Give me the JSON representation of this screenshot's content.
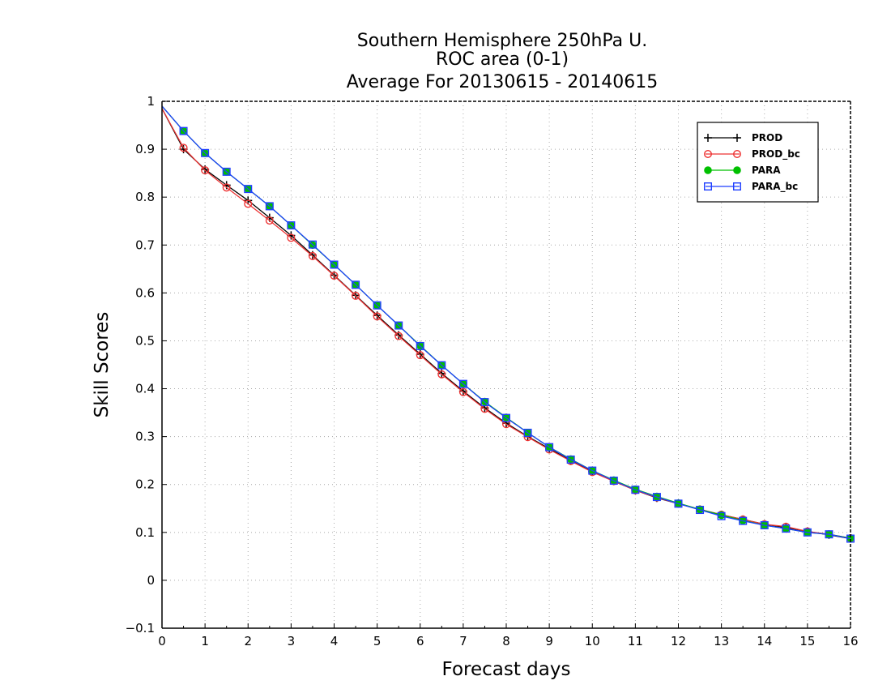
{
  "chart_data": {
    "type": "line",
    "title_lines": [
      "Southern Hemisphere 250hPa U.",
      "ROC area (0-1)",
      "Average For 20130615 - 20140615"
    ],
    "xlabel": "Forecast days",
    "ylabel": "Skill Scores",
    "xlim": [
      0,
      16
    ],
    "ylim": [
      -0.1,
      1
    ],
    "x_ticks": [
      0,
      1,
      2,
      3,
      4,
      5,
      6,
      7,
      8,
      9,
      10,
      11,
      12,
      13,
      14,
      15,
      16
    ],
    "y_ticks": [
      -0.1,
      0,
      0.1,
      0.2,
      0.3,
      0.4,
      0.5,
      0.6,
      0.7,
      0.8,
      0.9,
      1
    ],
    "y_tick_labels": [
      "−0.1",
      "0",
      "0.1",
      "0.2",
      "0.3",
      "0.4",
      "0.5",
      "0.6",
      "0.7",
      "0.8",
      "0.9",
      "1"
    ],
    "grid": true,
    "legend_position": "top-right",
    "x": [
      0,
      0.5,
      1,
      1.5,
      2,
      2.5,
      3,
      3.5,
      4,
      4.5,
      5,
      5.5,
      6,
      6.5,
      7,
      7.5,
      8,
      8.5,
      9,
      9.5,
      10,
      10.5,
      11,
      11.5,
      12,
      12.5,
      13,
      13.5,
      14,
      14.5,
      15,
      15.5,
      16
    ],
    "series": [
      {
        "name": "PROD",
        "color": "#000000",
        "marker": "plus",
        "values": [
          0.985,
          0.9,
          0.858,
          0.825,
          0.793,
          0.757,
          0.72,
          0.679,
          0.637,
          0.595,
          0.553,
          0.512,
          0.472,
          0.432,
          0.395,
          0.36,
          0.328,
          0.3,
          0.275,
          0.25,
          0.227,
          0.207,
          0.188,
          0.172,
          0.16,
          0.148,
          0.137,
          0.127,
          0.117,
          0.11,
          0.102,
          0.095,
          0.087
        ]
      },
      {
        "name": "PROD_bc",
        "color": "#ee3333",
        "marker": "circle-open",
        "values": [
          0.985,
          0.903,
          0.856,
          0.82,
          0.786,
          0.751,
          0.715,
          0.677,
          0.636,
          0.594,
          0.551,
          0.51,
          0.47,
          0.43,
          0.393,
          0.358,
          0.326,
          0.299,
          0.273,
          0.249,
          0.226,
          0.207,
          0.188,
          0.173,
          0.16,
          0.148,
          0.137,
          0.127,
          0.117,
          0.112,
          0.102,
          0.096,
          0.088
        ]
      },
      {
        "name": "PARA",
        "color": "#00c000",
        "marker": "circle-filled",
        "values": [
          0.99,
          0.938,
          0.892,
          0.853,
          0.817,
          0.781,
          0.741,
          0.7,
          0.659,
          0.617,
          0.574,
          0.532,
          0.49,
          0.449,
          0.41,
          0.373,
          0.34,
          0.308,
          0.278,
          0.253,
          0.229,
          0.209,
          0.19,
          0.175,
          0.161,
          0.148,
          0.136,
          0.125,
          0.115,
          0.108,
          0.1,
          0.096,
          0.088
        ]
      },
      {
        "name": "PARA_bc",
        "color": "#1f3fff",
        "marker": "square-open",
        "values": [
          0.99,
          0.938,
          0.892,
          0.853,
          0.817,
          0.781,
          0.741,
          0.701,
          0.659,
          0.617,
          0.574,
          0.532,
          0.489,
          0.449,
          0.41,
          0.372,
          0.339,
          0.308,
          0.278,
          0.252,
          0.229,
          0.208,
          0.189,
          0.174,
          0.16,
          0.147,
          0.134,
          0.124,
          0.115,
          0.108,
          0.1,
          0.096,
          0.087
        ]
      }
    ]
  }
}
